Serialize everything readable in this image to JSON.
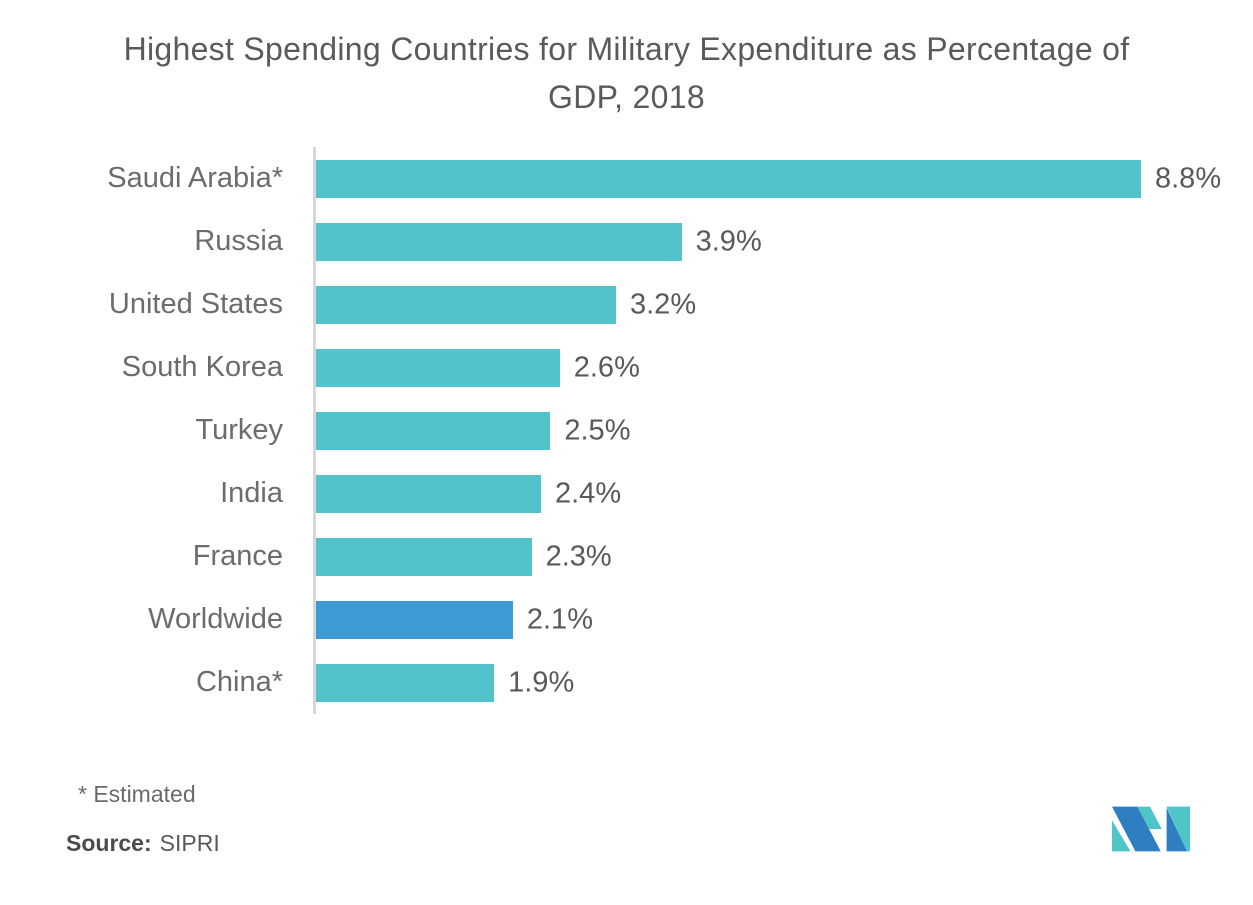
{
  "title": "Highest Spending Countries for Military Expenditure as Percentage of GDP, 2018",
  "chart_data": {
    "type": "bar",
    "orientation": "horizontal",
    "title": "Highest Spending Countries for Military Expenditure as Percentage of GDP, 2018",
    "categories": [
      "Saudi Arabia*",
      "Russia",
      "United States",
      "South Korea",
      "Turkey",
      "India",
      "France",
      "Worldwide",
      "China*"
    ],
    "values": [
      8.8,
      3.9,
      3.2,
      2.6,
      2.5,
      2.4,
      2.3,
      2.1,
      1.9
    ],
    "value_labels": [
      "8.8%",
      "3.9%",
      "3.2%",
      "2.6%",
      "2.5%",
      "2.4%",
      "2.3%",
      "2.1%",
      "1.9%"
    ],
    "xlabel": "",
    "ylabel": "",
    "xlim": [
      0,
      8.8
    ],
    "grid": false,
    "legend": false,
    "data_labels": "outside-end",
    "bar_color": "#52C3CB",
    "highlight_category": "Worldwide",
    "highlight_color": "#3E9AD3",
    "axis_line_color": "#D7D7D7"
  },
  "footnote": "* Estimated",
  "source": {
    "label": "Source:",
    "value": "SIPRI"
  },
  "logo": {
    "name": "mordor-intelligence-m-logo",
    "teal": "#4EC5C7",
    "blue": "#2E7EC1"
  }
}
